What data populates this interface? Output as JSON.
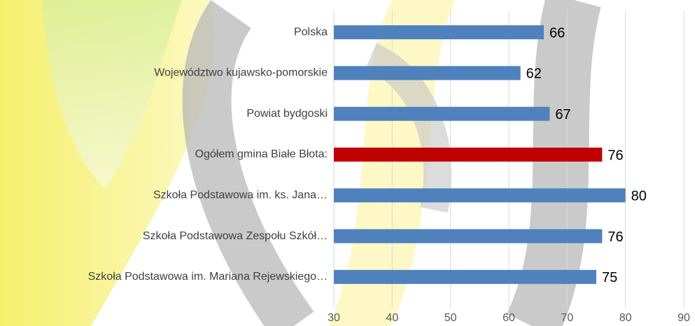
{
  "chart_data": {
    "type": "bar",
    "orientation": "horizontal",
    "categories": [
      "Polska",
      "Województwo kujawsko-pomorskie",
      "Powiat bydgoski",
      "Ogółem gmina Białe Błota:",
      "Szkoła Podstawowa im. ks. Jana…",
      "Szkoła Podstawowa Zespołu Szkół…",
      "Szkoła Podstawowa im. Mariana Rejewskiego…"
    ],
    "values": [
      66,
      62,
      67,
      76,
      80,
      76,
      75
    ],
    "colors": [
      "#4f81bd",
      "#4f81bd",
      "#4f81bd",
      "#c00000",
      "#4f81bd",
      "#4f81bd",
      "#4f81bd"
    ],
    "xlim": [
      30,
      90
    ],
    "xticks": [
      30,
      40,
      50,
      60,
      70,
      80,
      90
    ],
    "grid": true
  }
}
